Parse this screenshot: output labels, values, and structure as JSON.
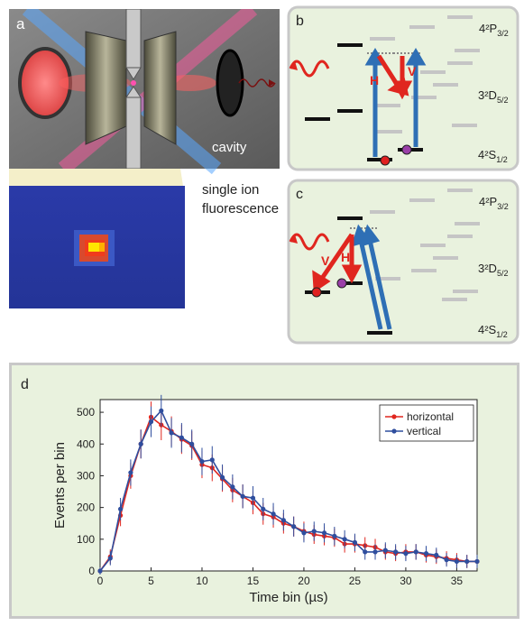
{
  "panel_a": {
    "label": "a",
    "cavity_label": "cavity",
    "fluor_label_line1": "single ion",
    "fluor_label_line2": "fluorescence"
  },
  "panel_b": {
    "label": "b",
    "level_P": "4²P",
    "level_P_sub": "3/2",
    "level_D": "3²D",
    "level_D_sub": "5/2",
    "level_S": "4²S",
    "level_S_sub": "1/2",
    "H": "H",
    "V": "V"
  },
  "panel_c": {
    "label": "c",
    "level_P": "4²P",
    "level_P_sub": "3/2",
    "level_D": "3²D",
    "level_D_sub": "5/2",
    "level_S": "4²S",
    "level_S_sub": "1/2",
    "H": "H",
    "V": "V"
  },
  "colors": {
    "panel_bg": "#e9f2de",
    "panel_border": "#c8c8c8",
    "red": "#e0261f",
    "blue": "#2e6fb5",
    "series_horizontal": "#e0261f",
    "series_vertical": "#2f4e9e"
  },
  "chart_data": {
    "type": "line",
    "panel_label": "d",
    "xlabel": "Time bin (µs)",
    "ylabel": "Events per bin",
    "xlim": [
      0,
      37
    ],
    "ylim": [
      0,
      540
    ],
    "xticks": [
      0,
      5,
      10,
      15,
      20,
      25,
      30,
      35
    ],
    "yticks": [
      0,
      100,
      200,
      300,
      400,
      500
    ],
    "legend_position": "top-right",
    "x": [
      0,
      1,
      2,
      3,
      4,
      5,
      6,
      7,
      8,
      9,
      10,
      11,
      12,
      13,
      14,
      15,
      16,
      17,
      18,
      19,
      20,
      21,
      22,
      23,
      24,
      25,
      26,
      27,
      28,
      29,
      30,
      31,
      32,
      33,
      34,
      35,
      36,
      37
    ],
    "series": [
      {
        "name": "horizontal",
        "color": "#e0261f",
        "values": [
          0,
          45,
          175,
          300,
          400,
          485,
          460,
          440,
          415,
          395,
          335,
          325,
          290,
          255,
          235,
          215,
          180,
          170,
          150,
          140,
          125,
          115,
          110,
          105,
          85,
          85,
          80,
          75,
          60,
          55,
          60,
          60,
          50,
          45,
          40,
          35,
          30,
          30
        ]
      },
      {
        "name": "vertical",
        "color": "#2f4e9e",
        "values": [
          0,
          40,
          195,
          310,
          400,
          470,
          505,
          435,
          420,
          400,
          345,
          350,
          295,
          265,
          235,
          230,
          195,
          180,
          160,
          140,
          120,
          125,
          120,
          110,
          100,
          90,
          60,
          60,
          65,
          60,
          55,
          60,
          55,
          50,
          35,
          30,
          30,
          30
        ]
      }
    ]
  }
}
